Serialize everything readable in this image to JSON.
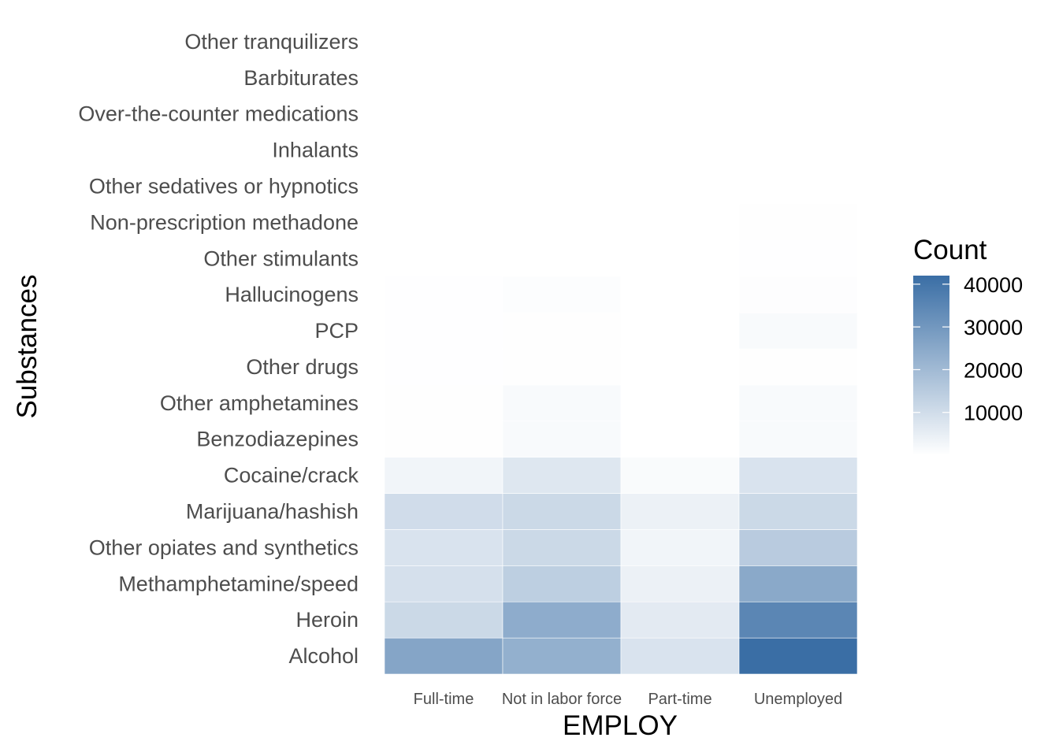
{
  "chart_data": {
    "type": "heatmap",
    "title": "",
    "xlabel": "EMPLOY",
    "ylabel": "Substances",
    "x_categories": [
      "Full-time",
      "Not in labor force",
      "Part-time",
      "Unemployed"
    ],
    "y_categories": [
      "Alcohol",
      "Heroin",
      "Methamphetamine/speed",
      "Other opiates and synthetics",
      "Marijuana/hashish",
      "Cocaine/crack",
      "Benzodiazepines",
      "Other amphetamines",
      "Other drugs",
      "PCP",
      "Hallucinogens",
      "Other stimulants",
      "Non-prescription methadone",
      "Other sedatives or hypnotics",
      "Inhalants",
      "Over-the-counter medications",
      "Barbiturates",
      "Other tranquilizers"
    ],
    "values": [
      [
        26000,
        23000,
        8000,
        42000
      ],
      [
        11000,
        24000,
        6000,
        35000
      ],
      [
        9000,
        14000,
        4000,
        25000
      ],
      [
        8000,
        11000,
        3000,
        15000
      ],
      [
        10000,
        11000,
        4000,
        11000
      ],
      [
        3000,
        7000,
        1200,
        8000
      ],
      [
        300,
        1500,
        100,
        1500
      ],
      [
        300,
        1500,
        100,
        1500
      ],
      [
        200,
        300,
        100,
        300
      ],
      [
        200,
        300,
        100,
        1500
      ],
      [
        200,
        600,
        100,
        500
      ],
      [
        50,
        100,
        30,
        150
      ],
      [
        80,
        100,
        50,
        300
      ],
      [
        50,
        60,
        30,
        80
      ],
      [
        20,
        30,
        10,
        40
      ],
      [
        20,
        30,
        10,
        40
      ],
      [
        10,
        20,
        5,
        20
      ],
      [
        10,
        20,
        5,
        20
      ]
    ],
    "legend": {
      "title": "Count",
      "position": "right",
      "ticks": [
        10000,
        20000,
        30000,
        40000
      ],
      "min": 0,
      "max": 42000,
      "low_color": "#ffffff",
      "high_color": "#3a6ea5"
    },
    "grid": false
  }
}
